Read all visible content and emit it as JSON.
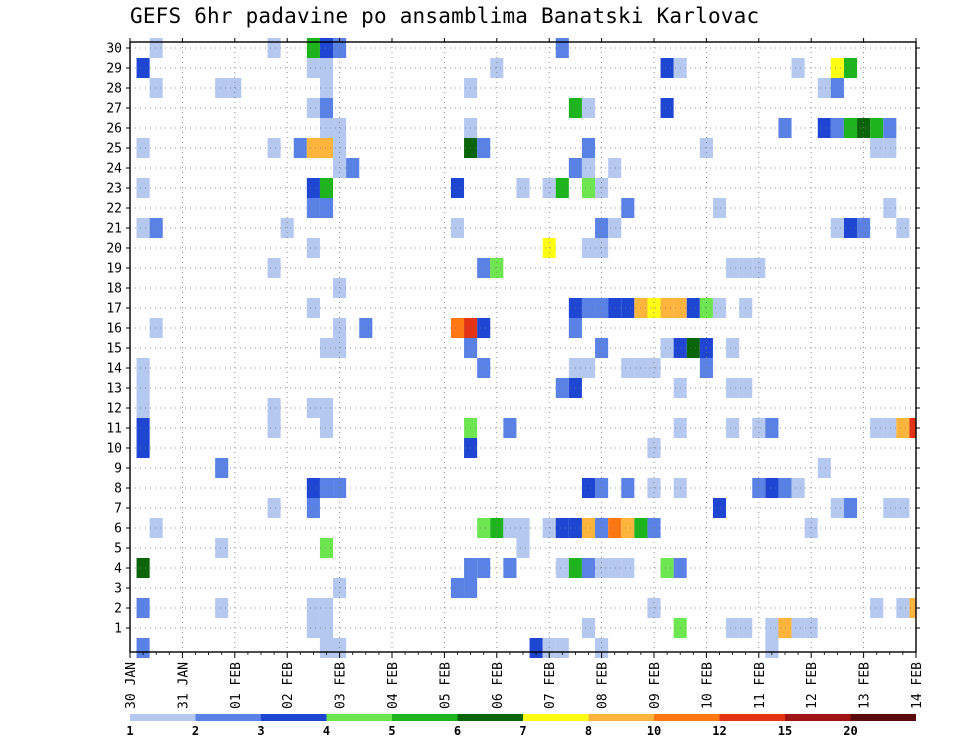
{
  "chart_data": {
    "type": "heatmap",
    "title": "GEFS 6hr padavine po ansamblima Banatski Karlovac",
    "xlabel": "",
    "ylabel": "",
    "x_ticks": [
      "30 JAN",
      "31 JAN",
      "01 FEB",
      "02 FEB",
      "03 FEB",
      "04 FEB",
      "05 FEB",
      "06 FEB",
      "07 FEB",
      "08 FEB",
      "09 FEB",
      "10 FEB",
      "11 FEB",
      "12 FEB",
      "13 FEB",
      "14 FEB"
    ],
    "y_ticks": [
      1,
      2,
      3,
      4,
      5,
      6,
      7,
      8,
      9,
      10,
      11,
      12,
      13,
      14,
      15,
      16,
      17,
      18,
      19,
      20,
      21,
      22,
      23,
      24,
      25,
      26,
      27,
      28,
      29,
      30
    ],
    "time_steps_per_day": 4,
    "x_range_steps": [
      0,
      60
    ],
    "y_range_members": [
      0,
      30
    ],
    "grid": true,
    "legend": {
      "position": "bottom",
      "boundaries": [
        "1",
        "2",
        "3",
        "4",
        "5",
        "6",
        "7",
        "8",
        "10",
        "12",
        "15",
        "20"
      ],
      "colors": [
        "#b4c8f0",
        "#5a82e6",
        "#1e46d2",
        "#6ee650",
        "#1eb41e",
        "#0a640a",
        "#ffff14",
        "#ffb43c",
        "#ff7814",
        "#e63214",
        "#a01414",
        "#5a0a0a"
      ]
    },
    "cells": [
      [
        2,
        30,
        1
      ],
      [
        11,
        30,
        1
      ],
      [
        14,
        30,
        5
      ],
      [
        15,
        30,
        3
      ],
      [
        16,
        30,
        2
      ],
      [
        33,
        30,
        2
      ],
      [
        1,
        29,
        3
      ],
      [
        14,
        29,
        1
      ],
      [
        15,
        29,
        1
      ],
      [
        28,
        29,
        1
      ],
      [
        41,
        29,
        3
      ],
      [
        42,
        29,
        1
      ],
      [
        51,
        29,
        1
      ],
      [
        54,
        29,
        7
      ],
      [
        55,
        29,
        5
      ],
      [
        2,
        28,
        1
      ],
      [
        7,
        28,
        1
      ],
      [
        8,
        28,
        1
      ],
      [
        15,
        28,
        1
      ],
      [
        26,
        28,
        1
      ],
      [
        53,
        28,
        1
      ],
      [
        54,
        28,
        2
      ],
      [
        14,
        27,
        1
      ],
      [
        15,
        27,
        2
      ],
      [
        34,
        27,
        5
      ],
      [
        35,
        27,
        1
      ],
      [
        41,
        27,
        3
      ],
      [
        15,
        26,
        1
      ],
      [
        16,
        26,
        1
      ],
      [
        26,
        26,
        1
      ],
      [
        50,
        26,
        2
      ],
      [
        53,
        26,
        3
      ],
      [
        54,
        26,
        2
      ],
      [
        55,
        26,
        5
      ],
      [
        56,
        26,
        6
      ],
      [
        57,
        26,
        5
      ],
      [
        58,
        26,
        2
      ],
      [
        1,
        25,
        1
      ],
      [
        11,
        25,
        1
      ],
      [
        13,
        25,
        2
      ],
      [
        14,
        25,
        8
      ],
      [
        15,
        25,
        8
      ],
      [
        16,
        25,
        1
      ],
      [
        26,
        25,
        6
      ],
      [
        27,
        25,
        2
      ],
      [
        35,
        25,
        2
      ],
      [
        44,
        25,
        1
      ],
      [
        57,
        25,
        1
      ],
      [
        58,
        25,
        1
      ],
      [
        16,
        24,
        1
      ],
      [
        17,
        24,
        2
      ],
      [
        34,
        24,
        2
      ],
      [
        35,
        24,
        1
      ],
      [
        37,
        24,
        1
      ],
      [
        1,
        23,
        1
      ],
      [
        14,
        23,
        3
      ],
      [
        15,
        23,
        5
      ],
      [
        25,
        23,
        3
      ],
      [
        30,
        23,
        1
      ],
      [
        32,
        23,
        1
      ],
      [
        33,
        23,
        5
      ],
      [
        35,
        23,
        4
      ],
      [
        36,
        23,
        1
      ],
      [
        14,
        22,
        2
      ],
      [
        15,
        22,
        2
      ],
      [
        38,
        22,
        2
      ],
      [
        45,
        22,
        1
      ],
      [
        58,
        22,
        1
      ],
      [
        1,
        21,
        1
      ],
      [
        2,
        21,
        2
      ],
      [
        12,
        21,
        1
      ],
      [
        25,
        21,
        1
      ],
      [
        36,
        21,
        2
      ],
      [
        37,
        21,
        1
      ],
      [
        54,
        21,
        1
      ],
      [
        55,
        21,
        3
      ],
      [
        56,
        21,
        2
      ],
      [
        59,
        21,
        1
      ],
      [
        14,
        20,
        1
      ],
      [
        32,
        20,
        7
      ],
      [
        35,
        20,
        1
      ],
      [
        36,
        20,
        1
      ],
      [
        11,
        19,
        1
      ],
      [
        27,
        19,
        2
      ],
      [
        28,
        19,
        4
      ],
      [
        46,
        19,
        1
      ],
      [
        47,
        19,
        1
      ],
      [
        48,
        19,
        1
      ],
      [
        16,
        18,
        1
      ],
      [
        14,
        17,
        1
      ],
      [
        34,
        17,
        3
      ],
      [
        35,
        17,
        2
      ],
      [
        36,
        17,
        2
      ],
      [
        37,
        17,
        3
      ],
      [
        38,
        17,
        3
      ],
      [
        39,
        17,
        8
      ],
      [
        40,
        17,
        7
      ],
      [
        41,
        17,
        8
      ],
      [
        42,
        17,
        8
      ],
      [
        43,
        17,
        3
      ],
      [
        44,
        17,
        4
      ],
      [
        45,
        17,
        1
      ],
      [
        47,
        17,
        1
      ],
      [
        2,
        16,
        1
      ],
      [
        16,
        16,
        1
      ],
      [
        18,
        16,
        2
      ],
      [
        25,
        16,
        9
      ],
      [
        26,
        16,
        10
      ],
      [
        27,
        16,
        3
      ],
      [
        34,
        16,
        2
      ],
      [
        15,
        15,
        1
      ],
      [
        16,
        15,
        1
      ],
      [
        26,
        15,
        2
      ],
      [
        36,
        15,
        2
      ],
      [
        41,
        15,
        1
      ],
      [
        42,
        15,
        3
      ],
      [
        43,
        15,
        6
      ],
      [
        44,
        15,
        3
      ],
      [
        46,
        15,
        1
      ],
      [
        1,
        14,
        1
      ],
      [
        27,
        14,
        2
      ],
      [
        34,
        14,
        1
      ],
      [
        35,
        14,
        1
      ],
      [
        38,
        14,
        1
      ],
      [
        39,
        14,
        1
      ],
      [
        40,
        14,
        1
      ],
      [
        44,
        14,
        2
      ],
      [
        1,
        13,
        1
      ],
      [
        33,
        13,
        2
      ],
      [
        34,
        13,
        3
      ],
      [
        42,
        13,
        1
      ],
      [
        46,
        13,
        1
      ],
      [
        47,
        13,
        1
      ],
      [
        1,
        12,
        1
      ],
      [
        11,
        12,
        1
      ],
      [
        14,
        12,
        1
      ],
      [
        15,
        12,
        1
      ],
      [
        1,
        11,
        3
      ],
      [
        11,
        11,
        1
      ],
      [
        15,
        11,
        1
      ],
      [
        26,
        11,
        4
      ],
      [
        29,
        11,
        2
      ],
      [
        42,
        11,
        1
      ],
      [
        46,
        11,
        1
      ],
      [
        48,
        11,
        1
      ],
      [
        49,
        11,
        2
      ],
      [
        57,
        11,
        1
      ],
      [
        58,
        11,
        1
      ],
      [
        59,
        11,
        8
      ],
      [
        60,
        11,
        10
      ],
      [
        1,
        10,
        3
      ],
      [
        26,
        10,
        3
      ],
      [
        40,
        10,
        1
      ],
      [
        7,
        9,
        2
      ],
      [
        53,
        9,
        1
      ],
      [
        14,
        8,
        3
      ],
      [
        15,
        8,
        2
      ],
      [
        16,
        8,
        2
      ],
      [
        35,
        8,
        3
      ],
      [
        36,
        8,
        2
      ],
      [
        38,
        8,
        2
      ],
      [
        40,
        8,
        1
      ],
      [
        42,
        8,
        1
      ],
      [
        48,
        8,
        2
      ],
      [
        49,
        8,
        3
      ],
      [
        50,
        8,
        2
      ],
      [
        51,
        8,
        1
      ],
      [
        11,
        7,
        1
      ],
      [
        14,
        7,
        2
      ],
      [
        45,
        7,
        3
      ],
      [
        54,
        7,
        1
      ],
      [
        55,
        7,
        2
      ],
      [
        58,
        7,
        1
      ],
      [
        59,
        7,
        1
      ],
      [
        2,
        6,
        1
      ],
      [
        27,
        6,
        4
      ],
      [
        28,
        6,
        5
      ],
      [
        29,
        6,
        1
      ],
      [
        30,
        6,
        1
      ],
      [
        32,
        6,
        1
      ],
      [
        33,
        6,
        3
      ],
      [
        34,
        6,
        3
      ],
      [
        35,
        6,
        8
      ],
      [
        36,
        6,
        2
      ],
      [
        37,
        6,
        9
      ],
      [
        38,
        6,
        8
      ],
      [
        39,
        6,
        5
      ],
      [
        40,
        6,
        2
      ],
      [
        52,
        6,
        1
      ],
      [
        7,
        5,
        1
      ],
      [
        15,
        5,
        4
      ],
      [
        30,
        5,
        1
      ],
      [
        1,
        4,
        6
      ],
      [
        26,
        4,
        2
      ],
      [
        27,
        4,
        2
      ],
      [
        29,
        4,
        2
      ],
      [
        33,
        4,
        1
      ],
      [
        34,
        4,
        5
      ],
      [
        35,
        4,
        2
      ],
      [
        36,
        4,
        1
      ],
      [
        37,
        4,
        1
      ],
      [
        38,
        4,
        1
      ],
      [
        41,
        4,
        4
      ],
      [
        42,
        4,
        2
      ],
      [
        16,
        3,
        1
      ],
      [
        25,
        3,
        2
      ],
      [
        26,
        3,
        2
      ],
      [
        1,
        2,
        2
      ],
      [
        7,
        2,
        1
      ],
      [
        14,
        2,
        1
      ],
      [
        15,
        2,
        1
      ],
      [
        40,
        2,
        1
      ],
      [
        57,
        2,
        1
      ],
      [
        59,
        2,
        1
      ],
      [
        60,
        2,
        8
      ],
      [
        61,
        2,
        2
      ],
      [
        14,
        1,
        1
      ],
      [
        15,
        1,
        1
      ],
      [
        35,
        1,
        1
      ],
      [
        42,
        1,
        4
      ],
      [
        46,
        1,
        1
      ],
      [
        47,
        1,
        1
      ],
      [
        49,
        1,
        1
      ],
      [
        50,
        1,
        8
      ],
      [
        51,
        1,
        1
      ],
      [
        52,
        1,
        1
      ],
      [
        1,
        0,
        2
      ],
      [
        15,
        0,
        1
      ],
      [
        16,
        0,
        1
      ],
      [
        31,
        0,
        3
      ],
      [
        32,
        0,
        1
      ],
      [
        33,
        0,
        1
      ],
      [
        36,
        0,
        1
      ],
      [
        49,
        0,
        1
      ]
    ]
  }
}
